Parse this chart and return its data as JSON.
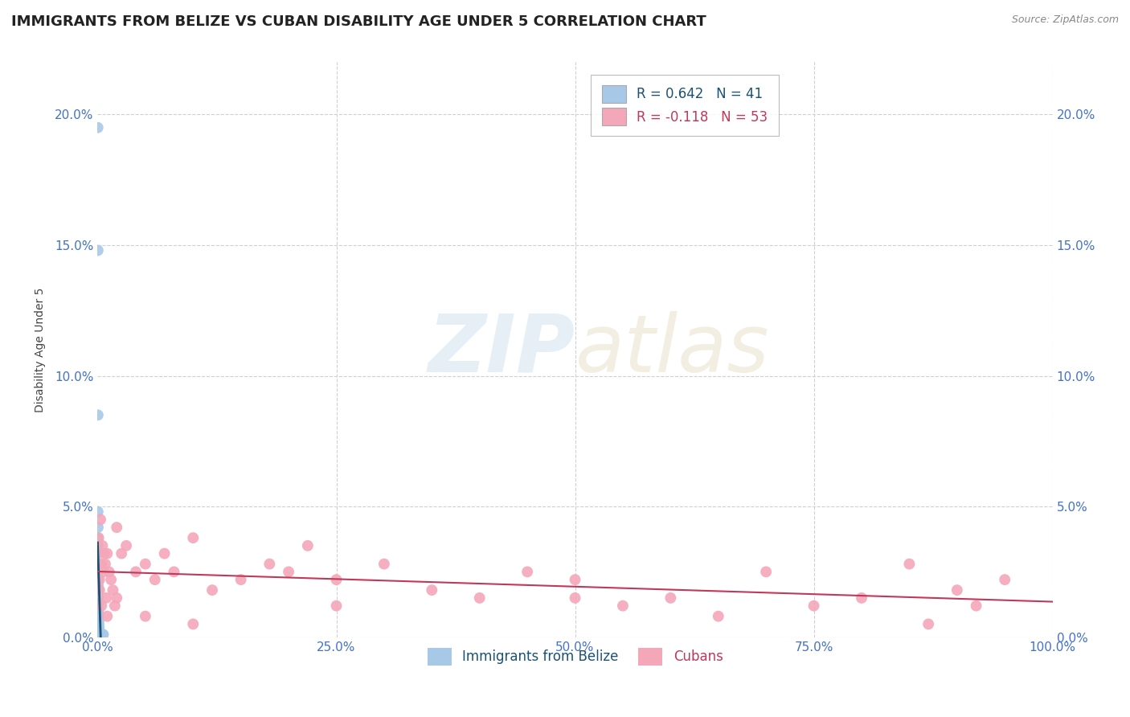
{
  "title": "IMMIGRANTS FROM BELIZE VS CUBAN DISABILITY AGE UNDER 5 CORRELATION CHART",
  "source": "Source: ZipAtlas.com",
  "ylabel": "Disability Age Under 5",
  "belize_R": 0.642,
  "belize_N": 41,
  "cuban_R": -0.118,
  "cuban_N": 53,
  "belize_color": "#a8c8e8",
  "belize_line_color": "#1a5276",
  "cuban_color": "#f4a7b9",
  "cuban_line_color": "#c0395a",
  "legend_label_belize": "Immigrants from Belize",
  "legend_label_cuban": "Cubans",
  "watermark_zip": "ZIP",
  "watermark_atlas": "atlas",
  "belize_x": [
    0.0002,
    0.0003,
    0.0003,
    0.0003,
    0.0004,
    0.0004,
    0.0004,
    0.0004,
    0.0005,
    0.0005,
    0.0005,
    0.0005,
    0.0006,
    0.0006,
    0.0006,
    0.0007,
    0.0007,
    0.0007,
    0.0008,
    0.0008,
    0.0009,
    0.0009,
    0.001,
    0.001,
    0.001,
    0.001,
    0.0012,
    0.0012,
    0.0013,
    0.0014,
    0.0015,
    0.0016,
    0.0018,
    0.002,
    0.0022,
    0.0025,
    0.003,
    0.0035,
    0.004,
    0.005,
    0.006
  ],
  "belize_y": [
    0.195,
    0.148,
    0.085,
    0.048,
    0.042,
    0.038,
    0.035,
    0.032,
    0.028,
    0.025,
    0.022,
    0.02,
    0.018,
    0.015,
    0.013,
    0.011,
    0.01,
    0.009,
    0.008,
    0.007,
    0.006,
    0.006,
    0.005,
    0.005,
    0.004,
    0.004,
    0.003,
    0.003,
    0.003,
    0.003,
    0.002,
    0.002,
    0.002,
    0.002,
    0.002,
    0.001,
    0.001,
    0.001,
    0.001,
    0.001,
    0.001
  ],
  "cuban_x": [
    0.001,
    0.002,
    0.003,
    0.004,
    0.005,
    0.006,
    0.007,
    0.008,
    0.009,
    0.01,
    0.012,
    0.014,
    0.016,
    0.018,
    0.02,
    0.025,
    0.03,
    0.04,
    0.05,
    0.06,
    0.07,
    0.08,
    0.1,
    0.12,
    0.15,
    0.18,
    0.2,
    0.22,
    0.25,
    0.3,
    0.35,
    0.4,
    0.45,
    0.5,
    0.55,
    0.6,
    0.65,
    0.7,
    0.75,
    0.8,
    0.85,
    0.87,
    0.9,
    0.92,
    0.95,
    0.002,
    0.004,
    0.01,
    0.02,
    0.05,
    0.1,
    0.25,
    0.5
  ],
  "cuban_y": [
    0.038,
    0.022,
    0.045,
    0.028,
    0.035,
    0.025,
    0.032,
    0.028,
    0.015,
    0.032,
    0.025,
    0.022,
    0.018,
    0.012,
    0.042,
    0.032,
    0.035,
    0.025,
    0.028,
    0.022,
    0.032,
    0.025,
    0.038,
    0.018,
    0.022,
    0.028,
    0.025,
    0.035,
    0.022,
    0.028,
    0.018,
    0.015,
    0.025,
    0.022,
    0.012,
    0.015,
    0.008,
    0.025,
    0.012,
    0.015,
    0.028,
    0.005,
    0.018,
    0.012,
    0.022,
    0.018,
    0.012,
    0.008,
    0.015,
    0.008,
    0.005,
    0.012,
    0.015
  ],
  "xlim": [
    0.0,
    1.0
  ],
  "ylim": [
    0.0,
    0.22
  ],
  "yticks": [
    0.0,
    0.05,
    0.1,
    0.15,
    0.2
  ],
  "xticks": [
    0.0,
    0.25,
    0.5,
    0.75,
    1.0
  ],
  "grid_color": "#d0d0d0",
  "background_color": "#ffffff",
  "title_fontsize": 13,
  "label_fontsize": 10,
  "tick_fontsize": 11,
  "axis_color": "#4472c4"
}
